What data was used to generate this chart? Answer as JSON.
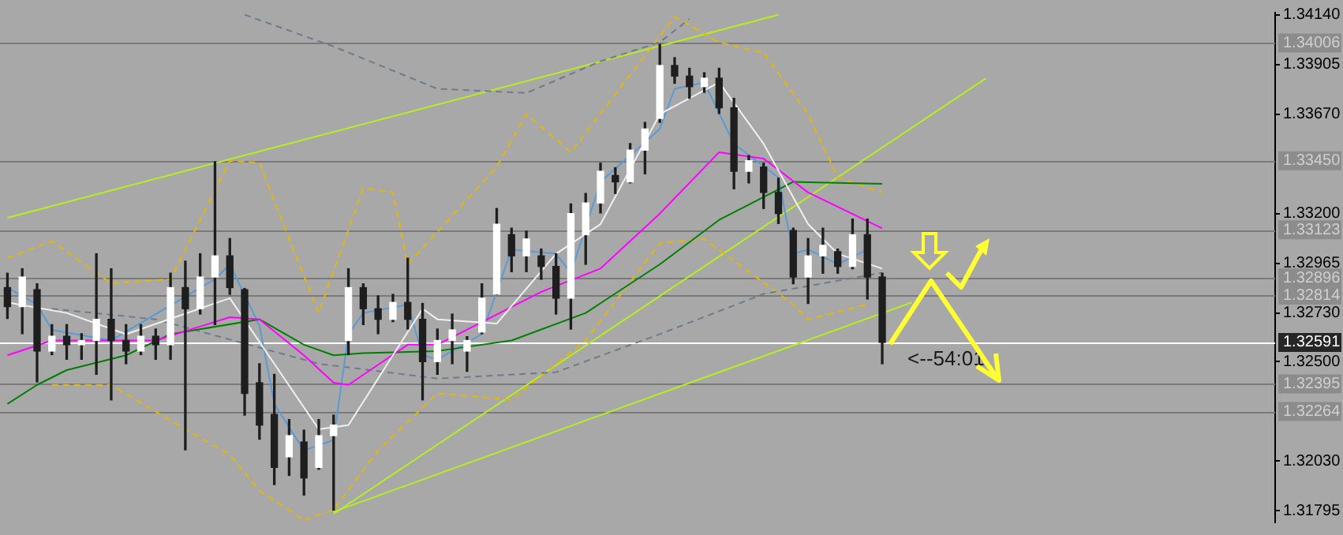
{
  "chart_data": {
    "type": "candlestick",
    "colors": [
      "#1e1e1e",
      "#ffffff",
      "#1e1e1e",
      "#ffffff",
      "#1e1e1e",
      "#ffffff",
      "#ffffff",
      "#1e1e1e",
      "#1e1e1e",
      "#ffffff",
      "#1e1e1e",
      "#ffffff",
      "#1e1e1e",
      "#ffffff",
      "#ffffff",
      "#1e1e1e",
      "#1e1e1e",
      "#1e1e1e",
      "#1e1e1e",
      "#ffffff",
      "#1e1e1e",
      "#ffffff",
      "#ffffff",
      "#ffffff",
      "#1e1e1e",
      "#1e1e1e",
      "#ffffff",
      "#1e1e1e",
      "#1e1e1e",
      "#ffffff",
      "#ffffff",
      "#ffffff",
      "#ffffff",
      "#ffffff",
      "#1e1e1e",
      "#ffffff",
      "#1e1e1e",
      "#1e1e1e",
      "#ffffff",
      "#ffffff",
      "#ffffff",
      "#1e1e1e",
      "#ffffff",
      "#ffffff",
      "#ffffff",
      "#1e1e1e",
      "#1e1e1e",
      "#ffffff",
      "#1e1e1e",
      "#1e1e1e",
      "#ffffff",
      "#1e1e1e",
      "#1e1e1e",
      "#1e1e1e",
      "#ffffff",
      "#ffffff",
      "#1e1e1e",
      "#ffffff",
      "#1e1e1e",
      "#1e1e1e",
      null,
      null,
      null,
      null,
      null,
      null,
      null,
      null,
      null,
      null,
      null,
      null,
      null,
      null,
      null,
      null,
      null,
      null,
      null,
      null,
      null,
      null,
      null,
      null,
      null,
      null
    ],
    "categories": [
      null,
      null,
      null,
      null,
      null,
      null,
      null,
      null,
      null,
      null,
      null,
      null,
      null,
      null,
      null,
      null,
      null,
      null,
      null,
      null,
      null,
      null,
      null,
      null,
      null,
      null,
      null,
      null,
      null,
      null,
      null,
      null,
      null,
      null,
      null,
      null,
      null,
      null,
      null,
      null,
      null,
      null,
      null,
      null,
      null,
      null,
      null,
      null,
      null,
      null,
      null,
      null,
      null,
      null,
      null,
      null,
      null,
      null,
      null,
      null,
      null,
      null,
      null,
      null,
      null,
      null,
      null,
      null,
      null,
      null,
      null,
      null,
      null,
      null,
      null,
      null,
      null,
      null,
      null,
      null,
      null,
      null,
      null,
      null,
      null,
      null
    ],
    "ohlc": [
      [
        1.3285,
        1.32918,
        1.32704,
        1.3276
      ],
      [
        1.3276,
        1.32939,
        1.32632,
        1.329
      ],
      [
        1.3284,
        1.32868,
        1.32404,
        1.3255
      ],
      [
        1.3255,
        1.32675,
        1.32533,
        1.3262
      ],
      [
        1.3262,
        1.32675,
        1.32511,
        1.3258
      ],
      [
        1.3258,
        1.32632,
        1.32511,
        1.326
      ],
      [
        1.326,
        1.3301,
        1.3244,
        1.327
      ],
      [
        1.327,
        1.32939,
        1.32319,
        1.326
      ],
      [
        1.326,
        1.32675,
        1.3249,
        1.3255
      ],
      [
        1.3255,
        1.32675,
        1.32533,
        1.3262
      ],
      [
        1.3262,
        1.32654,
        1.32511,
        1.3258
      ],
      [
        1.3258,
        1.32918,
        1.32511,
        1.3285
      ],
      [
        1.3285,
        1.32975,
        1.32083,
        1.3275
      ],
      [
        1.3275,
        1.3301,
        1.32725,
        1.329
      ],
      [
        1.329,
        1.33445,
        1.32675,
        1.33
      ],
      [
        1.33,
        1.33082,
        1.32818,
        1.3285
      ],
      [
        1.3284,
        1.32846,
        1.32247,
        1.3235
      ],
      [
        1.324,
        1.3249,
        1.32133,
        1.322
      ],
      [
        1.3225,
        1.3244,
        1.31919,
        1.32
      ],
      [
        1.3205,
        1.32226,
        1.31962,
        1.3215
      ],
      [
        1.3212,
        1.32176,
        1.31869,
        1.3195
      ],
      [
        1.32,
        1.32226,
        1.31991,
        1.3215
      ],
      [
        1.3215,
        1.32247,
        1.31798,
        1.322
      ],
      [
        1.326,
        1.32939,
        1.32533,
        1.3285
      ],
      [
        1.3285,
        1.32868,
        1.32675,
        1.3275
      ],
      [
        1.3275,
        1.32811,
        1.32632,
        1.327
      ],
      [
        1.327,
        1.32818,
        1.32689,
        1.3278
      ],
      [
        1.3278,
        1.32989,
        1.32654,
        1.327
      ],
      [
        1.327,
        1.32775,
        1.32319,
        1.325
      ],
      [
        1.325,
        1.32654,
        1.3244,
        1.326
      ],
      [
        1.326,
        1.32725,
        1.3249,
        1.3265
      ],
      [
        1.3255,
        1.32618,
        1.32454,
        1.326
      ],
      [
        1.3264,
        1.32868,
        1.32632,
        1.328
      ],
      [
        1.3282,
        1.33224,
        1.32818,
        1.3315
      ],
      [
        1.331,
        1.33131,
        1.32925,
        1.33
      ],
      [
        1.33,
        1.33117,
        1.32925,
        1.3308
      ],
      [
        1.33,
        1.33032,
        1.32889,
        1.3295
      ],
      [
        1.3295,
        1.3301,
        1.32725,
        1.328
      ],
      [
        1.328,
        1.33246,
        1.32654,
        1.332
      ],
      [
        1.331,
        1.33295,
        1.3296,
        1.3325
      ],
      [
        1.3325,
        1.33438,
        1.33203,
        1.334
      ],
      [
        1.3338,
        1.33417,
        1.33295,
        1.3335
      ],
      [
        1.3335,
        1.33531,
        1.33345,
        1.335
      ],
      [
        1.335,
        1.33631,
        1.33388,
        1.336
      ],
      [
        1.3365,
        1.34,
        1.33631,
        1.339
      ],
      [
        1.339,
        1.33937,
        1.33816,
        1.3385
      ],
      [
        1.3385,
        1.33887,
        1.33745,
        1.338
      ],
      [
        1.338,
        1.33866,
        1.33773,
        1.3384
      ],
      [
        1.3384,
        1.33887,
        1.33673,
        1.337
      ],
      [
        1.337,
        1.33745,
        1.33317,
        1.334
      ],
      [
        1.334,
        1.33474,
        1.33345,
        1.3345
      ],
      [
        1.3342,
        1.33438,
        1.33224,
        1.333
      ],
      [
        1.333,
        1.33367,
        1.33153,
        1.332
      ],
      [
        1.3312,
        1.33131,
        1.32868,
        1.329
      ],
      [
        1.329,
        1.33082,
        1.32775,
        1.33
      ],
      [
        1.33,
        1.33131,
        1.32918,
        1.3305
      ],
      [
        1.3302,
        1.33032,
        1.32918,
        1.3295
      ],
      [
        1.3295,
        1.33174,
        1.32939,
        1.331
      ],
      [
        1.331,
        1.33174,
        1.32796,
        1.329
      ],
      [
        1.329,
        1.32918,
        1.3249,
        1.32591
      ],
      null,
      null,
      null,
      null,
      null,
      null,
      null,
      null,
      null,
      null,
      null,
      null,
      null,
      null,
      null,
      null,
      null,
      null,
      null,
      null,
      null,
      null,
      null,
      null,
      null,
      null
    ],
    "series": [
      {
        "type": "line",
        "color": "#f0f0f0",
        "line_style": "solid",
        "values": [
          1.3278,
          null,
          null,
          null,
          1.3273,
          null,
          null,
          null,
          1.3263,
          null,
          null,
          null,
          null,
          null,
          null,
          1.328,
          null,
          null,
          1.3249,
          null,
          null,
          1.3218,
          null,
          1.322,
          null,
          null,
          1.3253,
          null,
          1.3275,
          1.327,
          null,
          null,
          null,
          1.3268,
          null,
          null,
          null,
          1.3301,
          null,
          null,
          1.3315,
          null,
          null,
          null,
          1.3367,
          null,
          null,
          null,
          1.3382,
          null,
          null,
          1.3353,
          null,
          null,
          1.3315,
          null,
          1.3301,
          null,
          null,
          1.3294,
          null,
          null,
          null,
          null,
          null,
          null,
          null,
          null,
          null,
          null,
          null,
          null,
          null,
          null,
          null,
          null,
          null,
          null,
          null,
          null,
          null,
          null,
          null,
          null,
          null,
          null
        ]
      },
      {
        "type": "line",
        "color": "#ff00ff",
        "line_style": "solid",
        "values": [
          1.3253,
          null,
          null,
          1.326,
          null,
          null,
          null,
          null,
          null,
          null,
          1.326,
          null,
          null,
          null,
          null,
          1.3271,
          null,
          1.327,
          null,
          null,
          1.3253,
          null,
          1.324,
          1.3239,
          null,
          null,
          null,
          1.3258,
          null,
          1.3258,
          null,
          null,
          null,
          null,
          null,
          null,
          1.3283,
          null,
          null,
          null,
          1.3294,
          null,
          null,
          null,
          1.332,
          null,
          null,
          null,
          1.3349,
          null,
          null,
          1.3346,
          null,
          null,
          1.333,
          null,
          null,
          null,
          null,
          1.3313,
          null,
          null,
          null,
          null,
          null,
          null,
          null,
          null,
          null,
          null,
          null,
          null,
          null,
          null,
          null,
          null,
          null,
          null,
          null,
          null,
          null,
          null,
          null,
          null,
          null,
          null
        ]
      },
      {
        "type": "line",
        "color": "#008000",
        "line_style": "solid",
        "values": [
          1.323,
          null,
          1.3239,
          null,
          1.3246,
          null,
          null,
          null,
          1.3253,
          null,
          null,
          1.3263,
          null,
          null,
          null,
          null,
          null,
          1.327,
          null,
          null,
          1.3258,
          null,
          1.3253,
          null,
          1.3254,
          null,
          null,
          null,
          null,
          1.3255,
          null,
          null,
          null,
          null,
          1.326,
          null,
          null,
          null,
          null,
          1.3273,
          null,
          null,
          null,
          null,
          1.3296,
          null,
          null,
          null,
          1.3317,
          null,
          null,
          null,
          null,
          1.3335,
          null,
          null,
          null,
          null,
          null,
          1.3334,
          null,
          null,
          null,
          null,
          null,
          null,
          null,
          null,
          null,
          null,
          null,
          null,
          null,
          null,
          null,
          null,
          null,
          null,
          null,
          null,
          null,
          null,
          null,
          null,
          null,
          null
        ]
      },
      {
        "type": "line",
        "color": "#5b9bd5",
        "line_style": "solid",
        "values": [
          1.3285,
          null,
          1.3277,
          1.3265,
          null,
          null,
          null,
          1.326,
          null,
          null,
          null,
          null,
          null,
          null,
          1.3289,
          1.3296,
          null,
          1.3267,
          1.323,
          null,
          1.3208,
          null,
          1.3213,
          1.3263,
          1.3273,
          null,
          null,
          1.3277,
          1.3253,
          1.3251,
          null,
          null,
          1.3263,
          null,
          1.3303,
          null,
          null,
          1.3301,
          1.3292,
          null,
          1.3335,
          null,
          null,
          null,
          1.336,
          1.3379,
          null,
          1.3382,
          null,
          1.3353,
          null,
          null,
          1.3337,
          1.3301,
          1.3303,
          null,
          1.3296,
          null,
          1.3303,
          null,
          null,
          null,
          null,
          null,
          null,
          null,
          null,
          null,
          null,
          null,
          null,
          null,
          null,
          null,
          null,
          null,
          null,
          null,
          null,
          null,
          null,
          null,
          null,
          null,
          null,
          null
        ]
      },
      {
        "type": "line",
        "color": "#6e7b8b",
        "line_style": "dashed",
        "values": [
          null,
          null,
          null,
          null,
          null,
          null,
          null,
          null,
          null,
          null,
          null,
          null,
          null,
          null,
          null,
          null,
          1.3414,
          null,
          null,
          null,
          null,
          null,
          1.3399,
          null,
          null,
          null,
          null,
          null,
          null,
          1.3379,
          null,
          null,
          null,
          null,
          null,
          1.3377,
          null,
          null,
          null,
          null,
          1.3392,
          null,
          null,
          null,
          1.3401,
          null,
          1.3412,
          null,
          null,
          null,
          null,
          null,
          null,
          null,
          null,
          null,
          null,
          null,
          null,
          null,
          null,
          null,
          null,
          null,
          null,
          null,
          null,
          null,
          null,
          null,
          null,
          null,
          null,
          null,
          null,
          null,
          null,
          null,
          null,
          null,
          null,
          null,
          null,
          null,
          null,
          null
        ]
      },
      {
        "type": "line",
        "color": "#6e7b8b",
        "line_style": "dashed",
        "values": [
          null,
          null,
          null,
          1.3275,
          null,
          null,
          null,
          null,
          null,
          null,
          1.327,
          null,
          null,
          null,
          null,
          null,
          null,
          null,
          null,
          null,
          null,
          1.3249,
          null,
          null,
          null,
          null,
          null,
          null,
          null,
          1.3242,
          null,
          null,
          null,
          null,
          null,
          null,
          null,
          1.3245,
          null,
          null,
          null,
          null,
          null,
          null,
          1.3263,
          null,
          null,
          null,
          null,
          null,
          null,
          1.3282,
          null,
          null,
          null,
          null,
          null,
          null,
          null,
          1.3292,
          null,
          null,
          null,
          null,
          null,
          null,
          null,
          null,
          null,
          null,
          null,
          null,
          null,
          null,
          null,
          null,
          null,
          null,
          null,
          null,
          null,
          null,
          null,
          null,
          null,
          null
        ]
      },
      {
        "type": "line",
        "color": "#e6b800",
        "line_style": "dashed",
        "values": [
          1.3299,
          null,
          null,
          1.3307,
          null,
          null,
          null,
          1.3287,
          null,
          null,
          null,
          1.3289,
          null,
          null,
          null,
          1.3345,
          null,
          1.3344,
          null,
          1.3308,
          null,
          1.3273,
          null,
          null,
          1.3332,
          null,
          1.333,
          1.3296,
          null,
          null,
          null,
          null,
          null,
          1.3342,
          null,
          1.3367,
          null,
          null,
          1.3349,
          null,
          null,
          null,
          null,
          null,
          null,
          1.3413,
          null,
          null,
          1.3401,
          null,
          null,
          1.3396,
          null,
          null,
          1.3367,
          null,
          1.3337,
          null,
          null,
          1.333,
          null,
          null,
          null,
          null,
          null,
          null,
          null,
          null,
          null,
          null,
          null,
          null,
          null,
          null,
          null,
          null,
          null,
          null,
          null,
          null,
          null,
          null,
          null,
          null,
          null,
          null
        ]
      },
      {
        "type": "line",
        "color": "#e6b800",
        "line_style": "dashed",
        "values": [
          null,
          null,
          null,
          1.3239,
          null,
          null,
          null,
          1.3239,
          null,
          null,
          null,
          null,
          1.3218,
          null,
          null,
          1.3206,
          null,
          1.3189,
          null,
          null,
          1.3175,
          null,
          1.318,
          null,
          null,
          1.3208,
          null,
          null,
          null,
          1.3235,
          null,
          null,
          null,
          null,
          1.3232,
          null,
          null,
          null,
          null,
          1.326,
          null,
          null,
          null,
          null,
          1.3306,
          null,
          null,
          1.3308,
          null,
          null,
          null,
          null,
          null,
          1.3277,
          1.327,
          null,
          null,
          null,
          1.3277,
          null,
          null,
          null,
          null,
          null,
          null,
          null,
          null,
          null,
          null,
          null,
          null,
          null,
          null,
          null,
          null,
          null,
          null,
          null,
          null,
          null,
          null,
          null,
          null,
          null,
          null,
          null
        ]
      },
      {
        "type": "line",
        "color": "#b5f01e",
        "line_style": "solid",
        "values": [
          1.3318,
          null,
          null,
          null,
          null,
          null,
          null,
          null,
          null,
          null,
          null,
          null,
          null,
          null,
          null,
          null,
          null,
          null,
          null,
          null,
          null,
          null,
          null,
          null,
          null,
          null,
          null,
          null,
          null,
          null,
          null,
          null,
          null,
          null,
          null,
          null,
          null,
          null,
          null,
          null,
          null,
          null,
          null,
          null,
          null,
          null,
          null,
          null,
          null,
          null,
          null,
          null,
          1.3414,
          null,
          null,
          null,
          null,
          null,
          null,
          null,
          null,
          null,
          null,
          null,
          null,
          null,
          null,
          null,
          null,
          null,
          null,
          null,
          null,
          null,
          null,
          null,
          null,
          null,
          null,
          null,
          null,
          null,
          null,
          null,
          null,
          null
        ]
      },
      {
        "type": "line",
        "color": "#b5f01e",
        "line_style": "solid",
        "values": [
          null,
          null,
          null,
          null,
          null,
          null,
          null,
          null,
          null,
          null,
          null,
          null,
          null,
          null,
          null,
          null,
          null,
          null,
          null,
          null,
          null,
          null,
          1.3178,
          null,
          null,
          null,
          null,
          null,
          null,
          null,
          null,
          null,
          null,
          null,
          null,
          null,
          null,
          null,
          null,
          null,
          null,
          null,
          null,
          null,
          null,
          null,
          null,
          null,
          null,
          null,
          null,
          null,
          null,
          null,
          null,
          null,
          null,
          null,
          null,
          null,
          null,
          null,
          null,
          null,
          null,
          null,
          1.3384,
          null,
          null,
          null,
          null,
          null,
          null,
          null,
          null,
          null,
          null,
          null,
          null,
          null,
          null,
          null,
          null,
          null,
          null,
          null
        ]
      },
      {
        "type": "line",
        "color": "#b5f01e",
        "line_style": "solid",
        "values": [
          null,
          null,
          null,
          null,
          null,
          null,
          null,
          null,
          null,
          null,
          null,
          null,
          null,
          null,
          null,
          null,
          null,
          null,
          null,
          null,
          null,
          null,
          1.3179,
          null,
          null,
          null,
          null,
          null,
          null,
          null,
          null,
          null,
          null,
          null,
          null,
          null,
          null,
          null,
          null,
          null,
          null,
          null,
          null,
          null,
          null,
          null,
          null,
          null,
          null,
          null,
          null,
          null,
          null,
          null,
          null,
          null,
          null,
          null,
          null,
          null,
          null,
          1.3278,
          null,
          null,
          null,
          null,
          null,
          null,
          null,
          null,
          null,
          null,
          null,
          null,
          null,
          null,
          null,
          null,
          null,
          null,
          null,
          null,
          null,
          null,
          null,
          null
        ]
      }
    ],
    "ref_lines": [
      {
        "axis": "y",
        "value": 1.34006,
        "label": "1.34006",
        "color": "#7a7a7a"
      },
      {
        "axis": "y",
        "value": 1.3345,
        "label": "1.33450",
        "color": "#7a7a7a"
      },
      {
        "axis": "y",
        "value": 1.33123,
        "label": "1.33123",
        "color": "#7a7a7a"
      },
      {
        "axis": "y",
        "value": 1.32896,
        "label": "1.32896",
        "color": "#7a7a7a"
      },
      {
        "axis": "y",
        "value": 1.32814,
        "label": "1.32814",
        "color": "#7a7a7a"
      },
      {
        "axis": "y",
        "value": 1.32591,
        "label": "1.32591",
        "color": "#ffffff"
      },
      {
        "axis": "y",
        "value": 1.32395,
        "label": "1.32395",
        "color": "#7a7a7a"
      },
      {
        "axis": "y",
        "value": 1.32264,
        "label": "1.32264",
        "color": "#7a7a7a"
      }
    ],
    "annotations": [
      "<--54:01"
    ],
    "ylim": [
      1.3174,
      1.3415
    ],
    "yticks": [
      1.31795,
      {
        "value": 1.3203,
        "label": "1.32030"
      },
      {
        "value": 1.325,
        "label": "1.32500"
      },
      {
        "value": 1.3273,
        "label": "1.32730"
      },
      1.32965,
      {
        "value": 1.332,
        "label": "1.33200"
      },
      {
        "value": 1.3367,
        "label": "1.33670"
      },
      1.33905,
      {
        "value": 1.3414,
        "label": "1.34140"
      }
    ],
    "tick_labels": "y",
    "legend": false,
    "grid": false
  }
}
